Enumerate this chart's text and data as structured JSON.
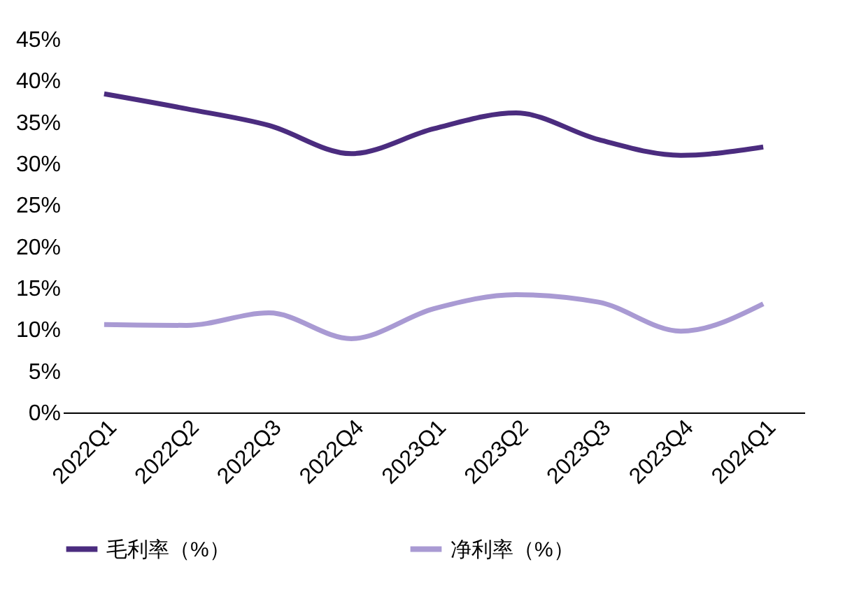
{
  "chart_data": {
    "type": "line",
    "categories": [
      "2022Q1",
      "2022Q2",
      "2022Q3",
      "2022Q4",
      "2023Q1",
      "2023Q2",
      "2023Q3",
      "2023Q4",
      "2024Q1"
    ],
    "series": [
      {
        "name": "毛利率（%）",
        "color": "#4b2c7f",
        "values": [
          38.4,
          36.6,
          34.6,
          31.2,
          34.2,
          36.1,
          32.9,
          31.0,
          32.0
        ]
      },
      {
        "name": "净利率（%）",
        "color": "#a99ad3",
        "values": [
          10.6,
          10.5,
          12.0,
          8.9,
          12.5,
          14.2,
          13.3,
          9.8,
          13.1
        ]
      }
    ],
    "ylim": [
      0,
      45
    ],
    "yticks": [
      {
        "value": 0,
        "label": "0%"
      },
      {
        "value": 5,
        "label": "5%"
      },
      {
        "value": 10,
        "label": "10%"
      },
      {
        "value": 15,
        "label": "15%"
      },
      {
        "value": 20,
        "label": "20%"
      },
      {
        "value": 25,
        "label": "25%"
      },
      {
        "value": 30,
        "label": "30%"
      },
      {
        "value": 35,
        "label": "35%"
      },
      {
        "value": 40,
        "label": "40%"
      },
      {
        "value": 45,
        "label": "45%"
      }
    ],
    "grid": false,
    "legend": "bottom",
    "marker": "none",
    "line_style": "solid"
  }
}
